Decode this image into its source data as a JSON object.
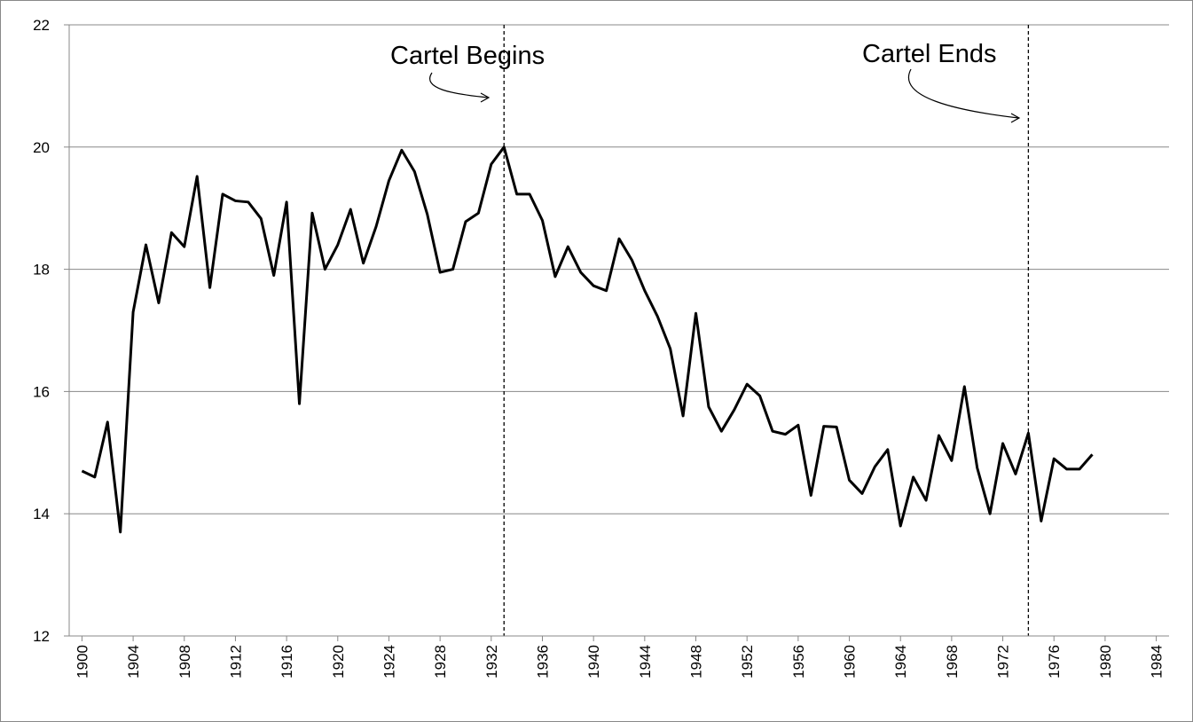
{
  "chart_data": {
    "type": "line",
    "x": [
      1900,
      1901,
      1902,
      1903,
      1904,
      1905,
      1906,
      1907,
      1908,
      1909,
      1910,
      1911,
      1912,
      1913,
      1914,
      1915,
      1916,
      1917,
      1918,
      1919,
      1920,
      1921,
      1922,
      1923,
      1924,
      1925,
      1926,
      1927,
      1928,
      1929,
      1930,
      1931,
      1932,
      1933,
      1934,
      1935,
      1936,
      1937,
      1938,
      1939,
      1940,
      1941,
      1942,
      1943,
      1944,
      1945,
      1946,
      1947,
      1948,
      1949,
      1950,
      1951,
      1952,
      1953,
      1954,
      1955,
      1956,
      1957,
      1958,
      1959,
      1960,
      1961,
      1962,
      1963,
      1964,
      1965,
      1966,
      1967,
      1968,
      1969,
      1970,
      1971,
      1972,
      1973,
      1974,
      1975,
      1976,
      1977,
      1978,
      1979
    ],
    "series": [
      {
        "color": "#000000",
        "values": [
          14.7,
          14.6,
          15.5,
          13.7,
          17.3,
          18.4,
          17.45,
          18.6,
          18.37,
          19.52,
          17.7,
          19.23,
          19.12,
          19.1,
          18.83,
          17.9,
          19.1,
          15.8,
          18.92,
          18.0,
          18.4,
          18.98,
          18.1,
          18.7,
          19.45,
          19.95,
          19.6,
          18.9,
          17.95,
          18.0,
          18.78,
          18.92,
          19.72,
          20.0,
          19.23,
          19.23,
          18.8,
          17.88,
          18.37,
          17.95,
          17.73,
          17.65,
          18.5,
          18.15,
          17.65,
          17.23,
          16.7,
          15.6,
          17.28,
          15.75,
          15.35,
          15.7,
          16.12,
          15.93,
          15.35,
          15.3,
          15.45,
          14.3,
          15.43,
          15.42,
          14.55,
          14.33,
          14.77,
          15.05,
          13.8,
          14.6,
          14.22,
          15.28,
          14.87,
          16.08,
          14.75,
          14.0,
          15.15,
          14.65,
          15.32,
          13.88,
          14.9,
          14.73,
          14.73,
          14.97
        ]
      }
    ],
    "xlim": [
      1899,
      1985
    ],
    "xticks": [
      1900,
      1904,
      1908,
      1912,
      1916,
      1920,
      1924,
      1928,
      1932,
      1936,
      1940,
      1944,
      1948,
      1952,
      1956,
      1960,
      1964,
      1968,
      1972,
      1976,
      1980,
      1984
    ],
    "ylim": [
      12,
      22
    ],
    "yticks": [
      12,
      14,
      16,
      18,
      20,
      22
    ],
    "grid": true,
    "annotations": [
      {
        "text": "Cartel Begins",
        "x": 1933
      },
      {
        "text": "Cartel Ends",
        "x": 1974
      }
    ]
  }
}
